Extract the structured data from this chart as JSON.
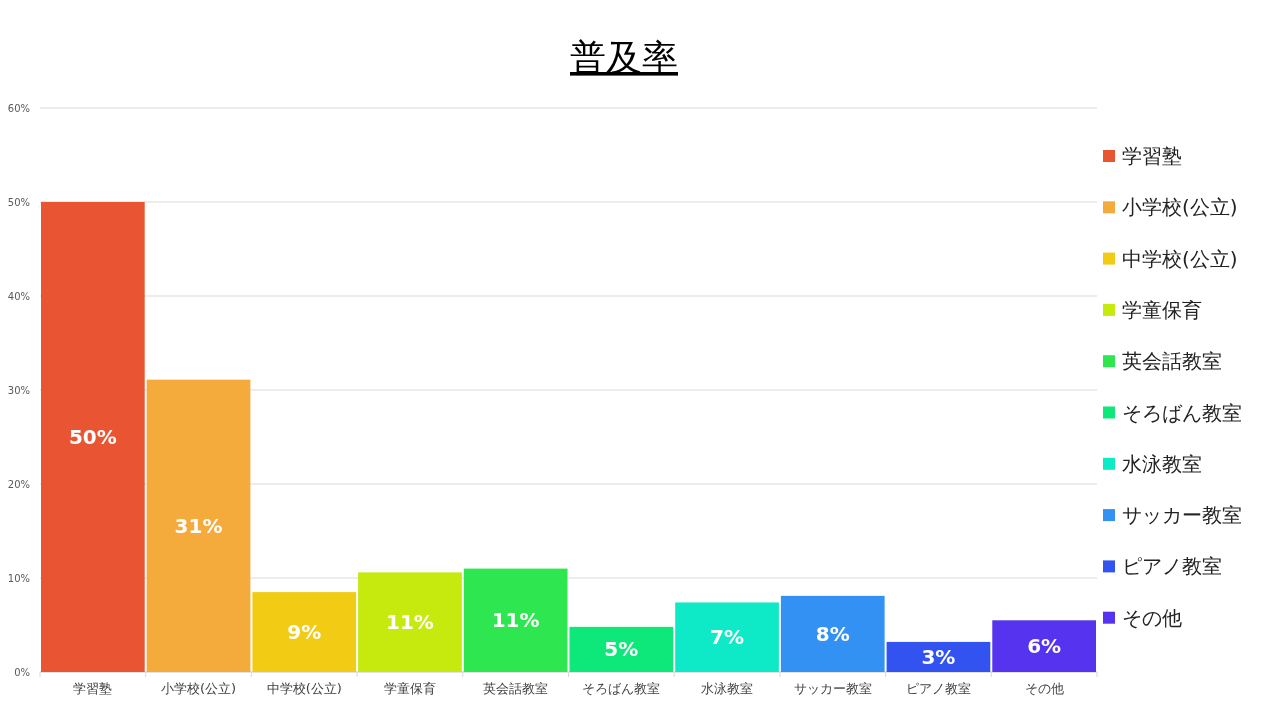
{
  "chart_data": {
    "type": "bar",
    "title": "普及率",
    "categories": [
      "学習塾",
      "小学校(公立)",
      "中学校(公立)",
      "学童保育",
      "英会話教室",
      "そろばん教室",
      "水泳教室",
      "サッカー教室",
      "ピアノ教室",
      "その他"
    ],
    "stacked": true,
    "series": [
      {
        "name": "学習塾",
        "color": "#e95532",
        "values": [
          50.0,
          null,
          null,
          null,
          null,
          null,
          null,
          null,
          null,
          null
        ],
        "value_labels": [
          "50%",
          null,
          null,
          null,
          null,
          null,
          null,
          null,
          null,
          null
        ]
      },
      {
        "name": "小学校(公立)",
        "color": "#f5ab3c",
        "values": [
          null,
          31.1,
          null,
          null,
          null,
          null,
          null,
          null,
          null,
          null
        ],
        "value_labels": [
          null,
          "31%",
          null,
          null,
          null,
          null,
          null,
          null,
          null,
          null
        ]
      },
      {
        "name": "中学校(公立)",
        "color": "#f2cb15",
        "values": [
          null,
          null,
          8.5,
          null,
          null,
          null,
          null,
          null,
          null,
          null
        ],
        "value_labels": [
          null,
          null,
          "9%",
          null,
          null,
          null,
          null,
          null,
          null,
          null
        ]
      },
      {
        "name": "学童保育",
        "color": "#c6ea0e",
        "values": [
          null,
          null,
          null,
          10.6,
          null,
          null,
          null,
          null,
          null,
          null
        ],
        "value_labels": [
          null,
          null,
          null,
          "11%",
          null,
          null,
          null,
          null,
          null,
          null
        ]
      },
      {
        "name": "英会話教室",
        "color": "#2de650",
        "values": [
          null,
          null,
          null,
          null,
          11.0,
          null,
          null,
          null,
          null,
          null
        ],
        "value_labels": [
          null,
          null,
          null,
          null,
          "11%",
          null,
          null,
          null,
          null,
          null
        ]
      },
      {
        "name": "そろばん教室",
        "color": "#0ee87a",
        "values": [
          null,
          null,
          null,
          null,
          null,
          4.8,
          null,
          null,
          null,
          null
        ],
        "value_labels": [
          null,
          null,
          null,
          null,
          null,
          "5%",
          null,
          null,
          null,
          null
        ]
      },
      {
        "name": "水泳教室",
        "color": "#0eeac8",
        "values": [
          null,
          null,
          null,
          null,
          null,
          null,
          7.4,
          null,
          null,
          null
        ],
        "value_labels": [
          null,
          null,
          null,
          null,
          null,
          null,
          "7%",
          null,
          null,
          null
        ]
      },
      {
        "name": "サッカー教室",
        "color": "#3391f3",
        "values": [
          null,
          null,
          null,
          null,
          null,
          null,
          null,
          8.1,
          null,
          null
        ],
        "value_labels": [
          null,
          null,
          null,
          null,
          null,
          null,
          null,
          "8%",
          null,
          null
        ]
      },
      {
        "name": "ピアノ教室",
        "color": "#3253ef",
        "values": [
          null,
          null,
          null,
          null,
          null,
          null,
          null,
          null,
          3.2,
          null
        ],
        "value_labels": [
          null,
          null,
          null,
          null,
          null,
          null,
          null,
          null,
          "3%",
          null
        ]
      },
      {
        "name": "その他",
        "color": "#5533ef",
        "values": [
          null,
          null,
          null,
          null,
          null,
          null,
          null,
          null,
          null,
          5.5
        ],
        "value_labels": [
          null,
          null,
          null,
          null,
          null,
          null,
          null,
          null,
          null,
          "6%"
        ]
      }
    ],
    "ylim": [
      0,
      60
    ],
    "yticks": [
      {
        "value": 0,
        "label": "0%"
      },
      {
        "value": 10,
        "label": "10%"
      },
      {
        "value": 20,
        "label": "20%"
      },
      {
        "value": 30,
        "label": "30%"
      },
      {
        "value": 40,
        "label": "40%"
      },
      {
        "value": 50,
        "label": "50%"
      },
      {
        "value": 60,
        "label": "60%"
      }
    ],
    "grid": "y",
    "legend": "right"
  }
}
